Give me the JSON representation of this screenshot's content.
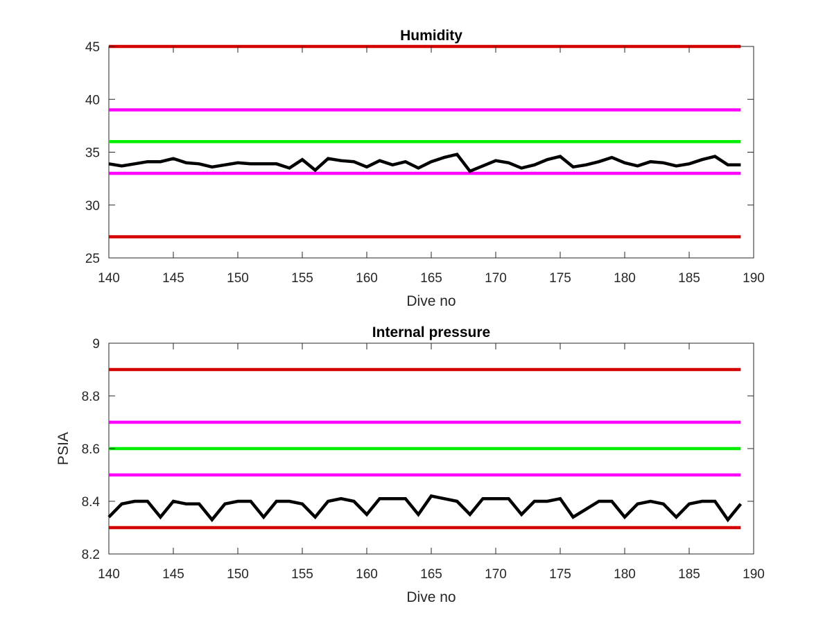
{
  "chart_data": [
    {
      "type": "line",
      "title": "Humidity",
      "xlabel": "Dive no",
      "ylabel": "",
      "xlim": [
        140,
        190
      ],
      "ylim": [
        25,
        45
      ],
      "xticks": [
        "140",
        "145",
        "150",
        "155",
        "160",
        "165",
        "170",
        "175",
        "180",
        "185",
        "190"
      ],
      "yticks": [
        "25",
        "30",
        "35",
        "40",
        "45"
      ],
      "grid": false,
      "thresholds": [
        {
          "value": 45,
          "color": "#d40000"
        },
        {
          "value": 39,
          "color": "#ff00ff"
        },
        {
          "value": 36,
          "color": "#00ee00"
        },
        {
          "value": 33,
          "color": "#ff00ff"
        },
        {
          "value": 27,
          "color": "#d40000"
        }
      ],
      "series": [
        {
          "color": "#000000",
          "x": [
            140,
            141,
            142,
            143,
            144,
            145,
            146,
            147,
            148,
            149,
            150,
            151,
            152,
            153,
            154,
            155,
            156,
            157,
            158,
            159,
            160,
            161,
            162,
            163,
            164,
            165,
            166,
            167,
            168,
            169,
            170,
            171,
            172,
            173,
            174,
            175,
            176,
            177,
            178,
            179,
            180,
            181,
            182,
            183,
            184,
            185,
            186,
            187,
            188,
            189
          ],
          "values": [
            33.9,
            33.7,
            33.9,
            34.1,
            34.1,
            34.4,
            34.0,
            33.9,
            33.6,
            33.8,
            34.0,
            33.9,
            33.9,
            33.9,
            33.5,
            34.3,
            33.3,
            34.4,
            34.2,
            34.1,
            33.6,
            34.2,
            33.8,
            34.1,
            33.5,
            34.1,
            34.5,
            34.8,
            33.2,
            33.7,
            34.2,
            34.0,
            33.5,
            33.8,
            34.3,
            34.6,
            33.6,
            33.8,
            34.1,
            34.5,
            34.0,
            33.7,
            34.1,
            34.0,
            33.7,
            33.9,
            34.3,
            34.6,
            33.8,
            33.8
          ]
        }
      ]
    },
    {
      "type": "line",
      "title": "Internal pressure",
      "xlabel": "Dive no",
      "ylabel": "PSIA",
      "xlim": [
        140,
        190
      ],
      "ylim": [
        8.2,
        9
      ],
      "xticks": [
        "140",
        "145",
        "150",
        "155",
        "160",
        "165",
        "170",
        "175",
        "180",
        "185",
        "190"
      ],
      "yticks": [
        "8.2",
        "8.4",
        "8.6",
        "8.8",
        "9"
      ],
      "grid": false,
      "thresholds": [
        {
          "value": 8.9,
          "color": "#d40000"
        },
        {
          "value": 8.7,
          "color": "#ff00ff"
        },
        {
          "value": 8.6,
          "color": "#00ee00"
        },
        {
          "value": 8.5,
          "color": "#ff00ff"
        },
        {
          "value": 8.3,
          "color": "#d40000"
        }
      ],
      "series": [
        {
          "color": "#000000",
          "x": [
            140,
            141,
            142,
            143,
            144,
            145,
            146,
            147,
            148,
            149,
            150,
            151,
            152,
            153,
            154,
            155,
            156,
            157,
            158,
            159,
            160,
            161,
            162,
            163,
            164,
            165,
            166,
            167,
            168,
            169,
            170,
            171,
            172,
            173,
            174,
            175,
            176,
            177,
            178,
            179,
            180,
            181,
            182,
            183,
            184,
            185,
            186,
            187,
            188,
            189
          ],
          "values": [
            8.34,
            8.39,
            8.4,
            8.4,
            8.34,
            8.4,
            8.39,
            8.39,
            8.33,
            8.39,
            8.4,
            8.4,
            8.34,
            8.4,
            8.4,
            8.39,
            8.34,
            8.4,
            8.41,
            8.4,
            8.35,
            8.41,
            8.41,
            8.41,
            8.35,
            8.42,
            8.41,
            8.4,
            8.35,
            8.41,
            8.41,
            8.41,
            8.35,
            8.4,
            8.4,
            8.41,
            8.34,
            8.37,
            8.4,
            8.4,
            8.34,
            8.39,
            8.4,
            8.39,
            8.34,
            8.39,
            8.4,
            8.4,
            8.33,
            8.39
          ]
        }
      ]
    }
  ]
}
